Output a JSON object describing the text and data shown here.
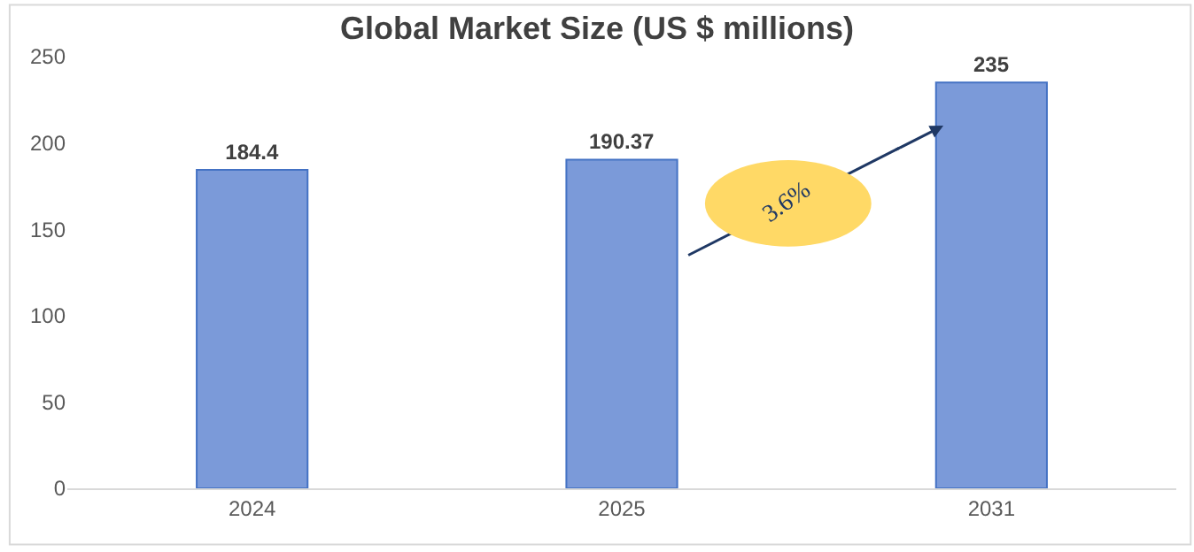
{
  "chart_data": {
    "type": "bar",
    "title": "Global Market Size (US $ millions)",
    "categories": [
      "2024",
      "2025",
      "2031"
    ],
    "values": [
      184.4,
      190.37,
      235
    ],
    "color": "#7b9ad9",
    "ylim": [
      0,
      250
    ],
    "yticks": [
      0,
      50,
      100,
      150,
      200,
      250
    ],
    "grid": false,
    "legend": false,
    "data_labels": true,
    "annotations": [
      "3.6%"
    ]
  }
}
